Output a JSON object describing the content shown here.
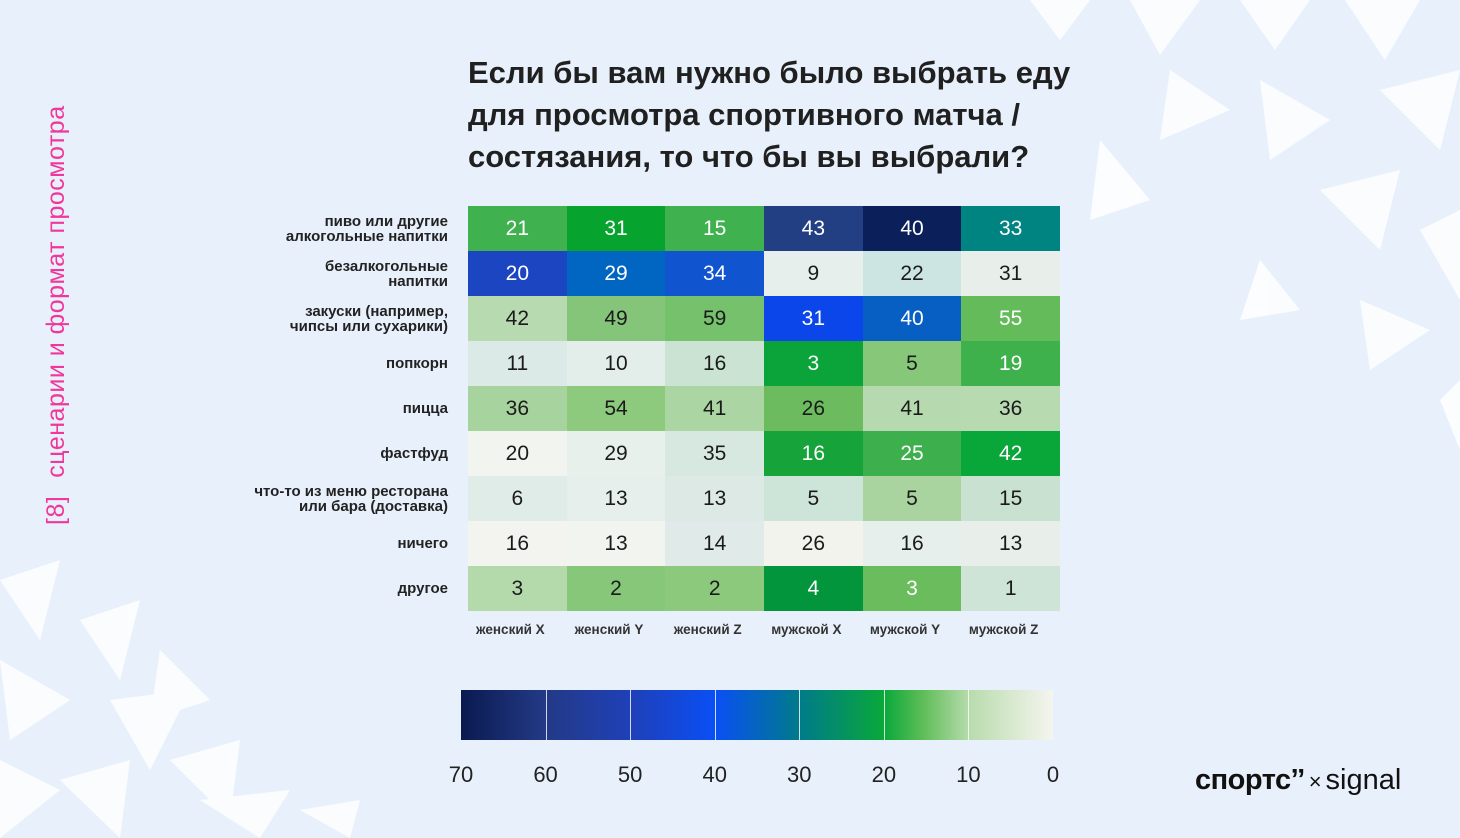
{
  "side_label": {
    "number": "[8]",
    "text": "сценарии и формат просмотра"
  },
  "colors": {
    "accent": "#f0389c",
    "background": "#e8f1fb"
  },
  "chart_data": {
    "type": "heatmap",
    "title": "Если бы вам нужно было выбрать еду для просмотра спортивного матча / состязания, то что бы вы выбрали?",
    "rows": [
      [
        "пиво или другие",
        "алкогольные напитки"
      ],
      [
        "безалкогольные",
        "напитки"
      ],
      [
        "закуски (например,",
        "чипсы или сухарики)"
      ],
      [
        "попкорн"
      ],
      [
        "пицца"
      ],
      [
        "фастфуд"
      ],
      [
        "что-то из меню ресторана",
        "или бара (доставка)"
      ],
      [
        "ничего"
      ],
      [
        "другое"
      ]
    ],
    "columns": [
      "женский X",
      "женский Y",
      "женский Z",
      "мужской X",
      "мужской Y",
      "мужской Z"
    ],
    "values": [
      [
        21,
        31,
        15,
        43,
        40,
        33
      ],
      [
        20,
        29,
        34,
        9,
        22,
        31
      ],
      [
        42,
        49,
        59,
        31,
        40,
        55
      ],
      [
        11,
        10,
        16,
        3,
        5,
        19
      ],
      [
        36,
        54,
        41,
        26,
        41,
        36
      ],
      [
        20,
        29,
        35,
        16,
        25,
        42
      ],
      [
        6,
        13,
        13,
        5,
        5,
        15
      ],
      [
        16,
        13,
        14,
        26,
        16,
        13
      ],
      [
        3,
        2,
        2,
        4,
        3,
        1
      ]
    ],
    "cell_colors": [
      [
        "#3fb14f",
        "#07a32f",
        "#3fb14f",
        "#233f84",
        "#0b1f5a",
        "#008482"
      ],
      [
        "#1c45c2",
        "#0066c2",
        "#1054cf",
        "#e6efeb",
        "#cde5e2",
        "#e8efea"
      ],
      [
        "#b7dab0",
        "#85c57a",
        "#76c16b",
        "#0a46ea",
        "#075fc4",
        "#64bb5a"
      ],
      [
        "#dbe9e7",
        "#e3eeeb",
        "#cbe3d2",
        "#0aa43a",
        "#86c77a",
        "#3eb04c"
      ],
      [
        "#a7d39e",
        "#8dca7e",
        "#abd6a3",
        "#6cbc5f",
        "#b6d9af",
        "#b7dab1"
      ],
      [
        "#f2f4ef",
        "#e8f0ec",
        "#d7e8e1",
        "#16a33a",
        "#3daf4c",
        "#09a63a"
      ],
      [
        "#e0ece8",
        "#e6efeb",
        "#dde9e5",
        "#cde4d8",
        "#a9d4a0",
        "#c8e1d0"
      ],
      [
        "#f3f4ef",
        "#f2f4ef",
        "#e0eae8",
        "#f3f3ee",
        "#e7efec",
        "#e8efeb"
      ],
      [
        "#b4d9aa",
        "#86c779",
        "#8cc97d",
        "#02953c",
        "#6abc5c",
        "#cde4d7"
      ]
    ],
    "text_light_threshold": 21,
    "colorbar": {
      "ticks": [
        "70",
        "60",
        "50",
        "40",
        "30",
        "20",
        "10",
        "0"
      ],
      "range": [
        0,
        70
      ]
    }
  },
  "logo": {
    "brand": "спортс’’",
    "sep": "×",
    "partner": "signal"
  }
}
